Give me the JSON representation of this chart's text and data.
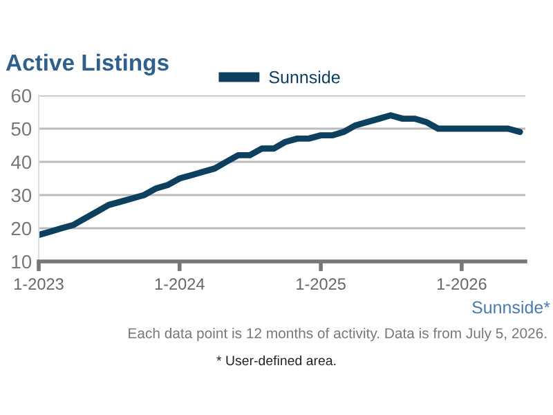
{
  "chart_data": {
    "type": "line",
    "title": "Active Listings",
    "subtitle": "Sunnside*",
    "annotations": [
      "Each data point is 12 months of activity. Data is from July 5, 2026.",
      "* User-defined area."
    ],
    "x": [
      "2023-01",
      "2023-02",
      "2023-03",
      "2023-04",
      "2023-05",
      "2023-06",
      "2023-07",
      "2023-08",
      "2023-09",
      "2023-10",
      "2023-11",
      "2023-12",
      "2024-01",
      "2024-02",
      "2024-03",
      "2024-04",
      "2024-05",
      "2024-06",
      "2024-07",
      "2024-08",
      "2024-09",
      "2024-10",
      "2024-11",
      "2024-12",
      "2025-01",
      "2025-02",
      "2025-03",
      "2025-04",
      "2025-05",
      "2025-06",
      "2025-07",
      "2025-08",
      "2025-09",
      "2025-10",
      "2025-11",
      "2025-12",
      "2026-01",
      "2026-02",
      "2026-03",
      "2026-04",
      "2026-05",
      "2026-06"
    ],
    "series": [
      {
        "name": "Sunnside",
        "color": "#0d3f5f",
        "values": [
          18,
          19,
          20,
          21,
          23,
          25,
          27,
          28,
          29,
          30,
          32,
          33,
          35,
          36,
          37,
          38,
          40,
          42,
          42,
          44,
          44,
          46,
          47,
          47,
          48,
          48,
          49,
          51,
          52,
          53,
          54,
          53,
          53,
          52,
          50,
          50,
          50,
          50,
          50,
          50,
          50,
          49
        ]
      }
    ],
    "xlim": [
      "2023-01-01",
      "2026-06-15"
    ],
    "xticks": [
      {
        "value": "2023-01",
        "label": "1-2023"
      },
      {
        "value": "2024-01",
        "label": "1-2024"
      },
      {
        "value": "2025-01",
        "label": "1-2025"
      },
      {
        "value": "2026-01",
        "label": "1-2026"
      }
    ],
    "ylim": [
      10,
      60
    ],
    "yticks": [
      10,
      20,
      30,
      40,
      50,
      60
    ],
    "grid": "y",
    "legend": "top",
    "marker": "none",
    "line_style": "solid"
  }
}
